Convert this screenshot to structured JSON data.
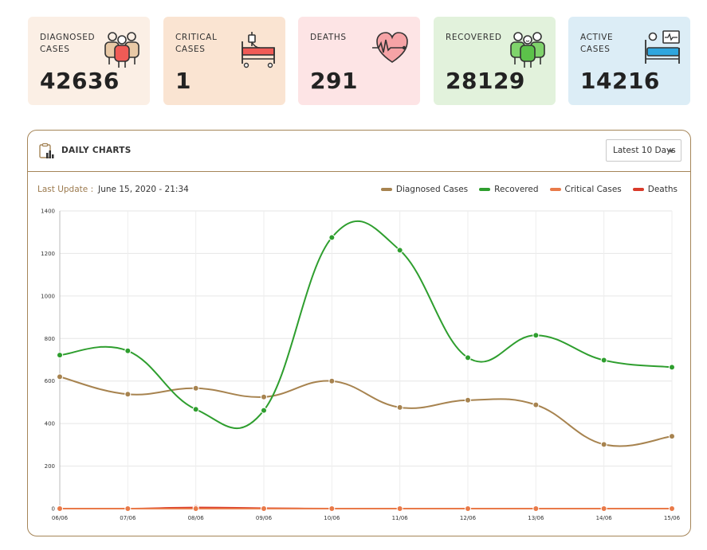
{
  "cards": [
    {
      "label_line1": "DIAGNOSED",
      "label_line2": "CASES",
      "value": "42636",
      "color": "#fbefe5"
    },
    {
      "label_line1": "CRITICAL",
      "label_line2": "CASES",
      "value": "1",
      "color": "#fae4d2"
    },
    {
      "label_line1": "DEATHS",
      "label_line2": "",
      "value": "291",
      "color": "#fde4e5"
    },
    {
      "label_line1": "RECOVERED",
      "label_line2": "",
      "value": "28129",
      "color": "#e2f2dc"
    },
    {
      "label_line1": "ACTIVE",
      "label_line2": "CASES",
      "value": "14216",
      "color": "#dcedf6"
    }
  ],
  "panel": {
    "title": "DAILY CHARTS",
    "range_select": "Latest 10 Days",
    "update_label": "Last Update :",
    "update_time": "June 15, 2020 - 21:34"
  },
  "chart_data": {
    "type": "line",
    "title": "Daily Charts",
    "xlabel": "",
    "ylabel": "",
    "ylim": [
      0,
      1400
    ],
    "yticks": [
      0,
      200,
      400,
      600,
      800,
      1000,
      1200,
      1400
    ],
    "categories": [
      "06/06",
      "07/06",
      "08/06",
      "09/06",
      "10/06",
      "11/06",
      "12/06",
      "13/06",
      "14/06",
      "15/06"
    ],
    "legend_position": "top-right",
    "series": [
      {
        "name": "Diagnosed Cases",
        "color": "#a7834f",
        "values": [
          620,
          538,
          566,
          525,
          600,
          476,
          510,
          488,
          302,
          340
        ]
      },
      {
        "name": "Recovered",
        "color": "#2e9e2e",
        "values": [
          722,
          742,
          467,
          462,
          1275,
          1215,
          710,
          815,
          698,
          665
        ]
      },
      {
        "name": "Critical Cases",
        "color": "#e97a49",
        "values": [
          0,
          0,
          0,
          0,
          0,
          0,
          0,
          0,
          0,
          0
        ]
      },
      {
        "name": "Deaths",
        "color": "#d93a2a",
        "values": [
          0,
          0,
          5,
          2,
          0,
          0,
          0,
          0,
          0,
          0
        ]
      }
    ]
  }
}
